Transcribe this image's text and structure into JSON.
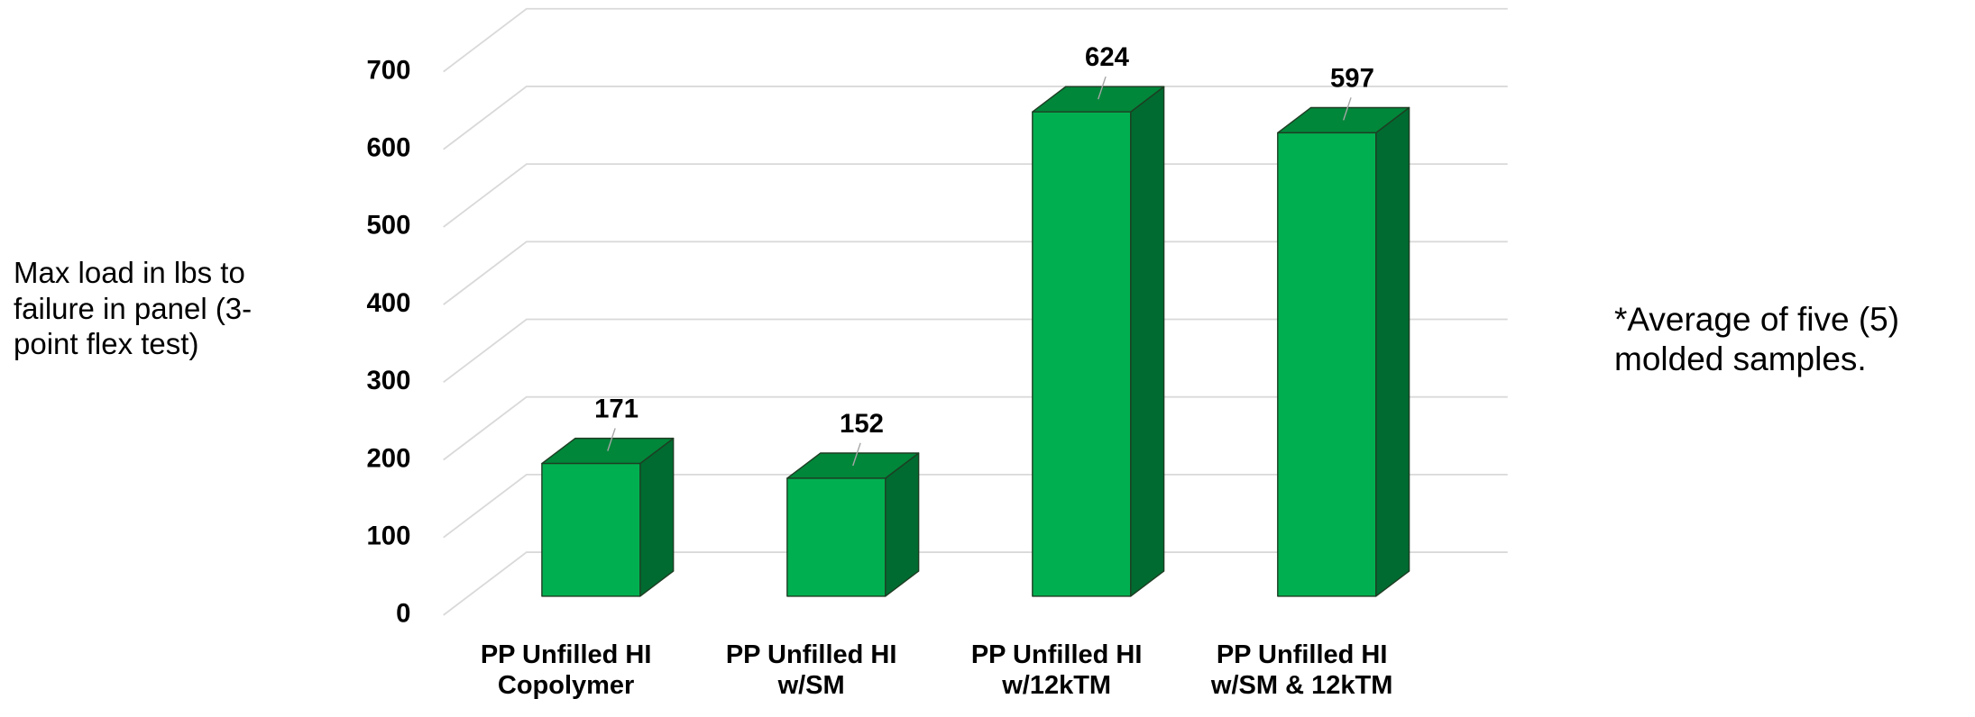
{
  "chart_data": {
    "type": "bar3d",
    "categories": [
      "PP Unfilled HI Copolymer",
      "PP Unfilled HI w/SM",
      "PP Unfilled HI w/12kTM",
      "PP Unfilled HI w/SM & 12kTM"
    ],
    "values": [
      171,
      152,
      624,
      597
    ],
    "color": "#00b050",
    "ylim": [
      0,
      700
    ],
    "yticks": [
      0,
      100,
      200,
      300,
      400,
      500,
      600,
      700
    ],
    "grid": true,
    "y_label": "Max load in lbs to failure in panel (3-point flex test)",
    "annotation": "*Average of five (5) molded samples."
  }
}
